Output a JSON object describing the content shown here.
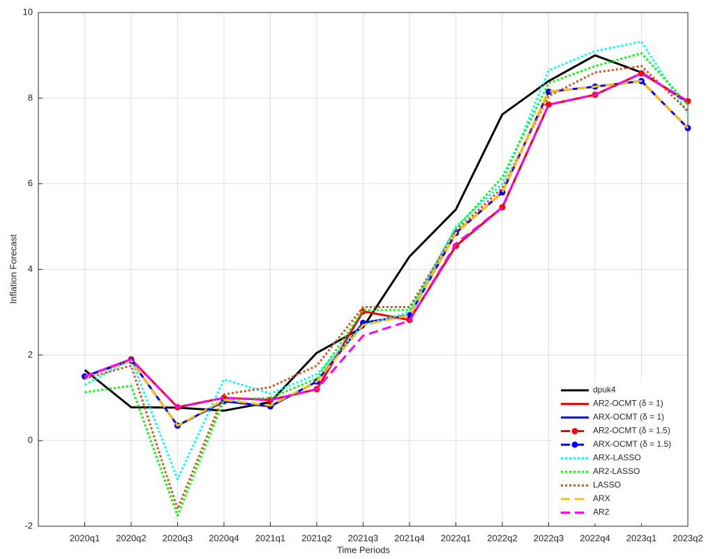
{
  "chart_data": {
    "type": "line",
    "xlabel": "Time Periods",
    "ylabel": "Inflation Forecast",
    "categories": [
      "2020q1",
      "2020q2",
      "2020q3",
      "2020q4",
      "2021q1",
      "2021q2",
      "2021q3",
      "2021q4",
      "2022q1",
      "2022q2",
      "2022q3",
      "2022q4",
      "2023q1",
      "2023q2"
    ],
    "ylim": [
      -2,
      10
    ],
    "yticks": [
      -2,
      0,
      2,
      4,
      6,
      8,
      10
    ],
    "grid": true,
    "legend": "lower right",
    "series": [
      {
        "name": "dpuk4",
        "color": "#000000",
        "dash": "solid",
        "marker": false,
        "values": [
          1.65,
          0.78,
          0.77,
          0.7,
          0.9,
          2.05,
          2.65,
          4.3,
          5.4,
          7.62,
          8.4,
          9.0,
          8.6,
          7.9
        ]
      },
      {
        "name": "AR2-OCMT (δ = 1)",
        "color": "#ff0000",
        "dash": "solid",
        "marker": false,
        "values": [
          1.5,
          1.9,
          0.78,
          1.0,
          0.95,
          1.2,
          3.02,
          2.82,
          4.55,
          5.45,
          7.85,
          8.08,
          8.58,
          7.93
        ]
      },
      {
        "name": "ARX-OCMT (δ = 1)",
        "color": "#0000ff",
        "dash": "solid",
        "marker": false,
        "values": [
          1.5,
          1.87,
          0.35,
          0.92,
          0.8,
          1.38,
          2.75,
          2.93,
          4.85,
          5.8,
          8.15,
          8.27,
          8.4,
          7.3
        ]
      },
      {
        "name": "AR2-OCMT (δ = 1.5)",
        "color": "#ff0000",
        "dash": "dashed",
        "marker": true,
        "values": [
          1.5,
          1.9,
          0.78,
          1.0,
          0.95,
          1.2,
          3.02,
          2.82,
          4.55,
          5.45,
          7.85,
          8.08,
          8.58,
          7.93
        ]
      },
      {
        "name": "ARX-OCMT (δ = 1.5)",
        "color": "#0000ff",
        "dash": "dashed",
        "marker": true,
        "values": [
          1.5,
          1.87,
          0.35,
          0.92,
          0.8,
          1.38,
          2.75,
          2.93,
          4.85,
          5.8,
          8.15,
          8.27,
          8.4,
          7.3
        ]
      },
      {
        "name": "ARX-LASSO",
        "color": "#00ffff",
        "dash": "dotted",
        "marker": false,
        "values": [
          1.3,
          1.9,
          -0.9,
          1.43,
          1.1,
          1.55,
          2.7,
          3.0,
          5.0,
          6.0,
          8.65,
          9.1,
          9.32,
          7.65
        ]
      },
      {
        "name": "AR2-LASSO",
        "color": "#00ff00",
        "dash": "dotted",
        "marker": false,
        "values": [
          1.13,
          1.28,
          -1.75,
          0.95,
          1.0,
          1.45,
          3.05,
          3.05,
          4.95,
          6.15,
          8.35,
          8.75,
          9.05,
          7.85
        ]
      },
      {
        "name": "LASSO",
        "color": "#d95319",
        "dash": "dotted",
        "marker": false,
        "values": [
          1.45,
          1.75,
          -1.6,
          1.08,
          1.25,
          1.75,
          3.12,
          3.12,
          4.9,
          5.9,
          8.05,
          8.6,
          8.75,
          7.7
        ]
      },
      {
        "name": "ARX",
        "color": "#ffc000",
        "dash": "dashed",
        "marker": false,
        "values": [
          1.5,
          1.87,
          0.35,
          0.95,
          0.82,
          1.38,
          2.7,
          2.93,
          4.85,
          5.8,
          8.15,
          8.27,
          8.4,
          7.3
        ]
      },
      {
        "name": "AR2",
        "color": "#ff00ff",
        "dash": "dashed",
        "marker": false,
        "values": [
          1.5,
          1.9,
          0.78,
          1.0,
          0.95,
          1.2,
          2.45,
          2.8,
          4.6,
          5.45,
          7.85,
          8.08,
          8.58,
          7.93
        ]
      }
    ]
  }
}
